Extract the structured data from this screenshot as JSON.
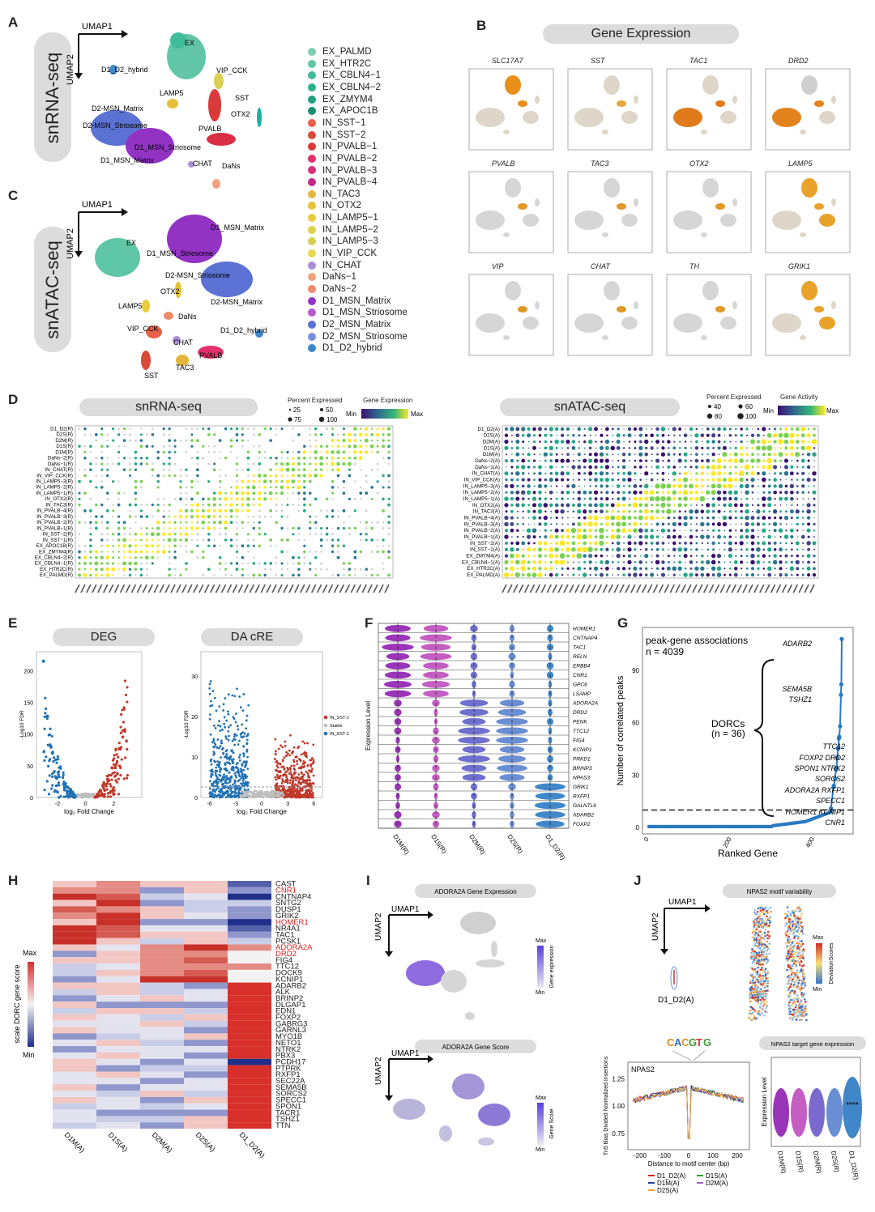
{
  "panels": {
    "A": {
      "label": "A",
      "side": "snRNA-seq",
      "umap1": "UMAP1",
      "umap2": "UMAP2",
      "clusters": [
        "EX",
        "D1_D2_hybrid",
        "VIP_CCK",
        "LAMP5",
        "SST",
        "D2-MSN_Matrix",
        "OTX2",
        "D2-MSN_Striosome",
        "PVALB",
        "D1_MSN_Striosome",
        "D1_MSN_Matrix",
        "CHAT",
        "DaNs"
      ]
    },
    "B": {
      "label": "B",
      "title": "Gene Expression",
      "genes": [
        "SLC17A7",
        "SST",
        "TAC1",
        "DRD2",
        "PVALB",
        "TAC3",
        "OTX2",
        "LAMP5",
        "VIP",
        "CHAT",
        "TH",
        "GRIK1"
      ]
    },
    "C": {
      "label": "C",
      "side": "snATAC-seq",
      "umap1": "UMAP1",
      "umap2": "UMAP2",
      "clusters": [
        "D1_MSN_Matrix",
        "EX",
        "D1_MSN_Striosome",
        "D2-MSN_Striosome",
        "OTX2",
        "LAMP5",
        "DaNs",
        "D2-MSN_Matrix",
        "VIP_CCK",
        "D1_D2_hybrid",
        "CHAT",
        "PVALB",
        "TAC3",
        "SST"
      ]
    },
    "legend": [
      {
        "name": "EX_PALMD",
        "color": "#7fcfb2"
      },
      {
        "name": "EX_HTR2C",
        "color": "#5fc6a6"
      },
      {
        "name": "EX_CBLN4−1",
        "color": "#3fbc9a"
      },
      {
        "name": "EX_CBLN4−2",
        "color": "#2ab28c"
      },
      {
        "name": "EX_ZMYM4",
        "color": "#1fa07c"
      },
      {
        "name": "EX_APOC1B",
        "color": "#19906f"
      },
      {
        "name": "IN_SST−1",
        "color": "#e8604a"
      },
      {
        "name": "IN_SST−2",
        "color": "#d84a3a"
      },
      {
        "name": "IN_PVALB−1",
        "color": "#d93a3a"
      },
      {
        "name": "IN_PVALB−2",
        "color": "#e2306a"
      },
      {
        "name": "IN_PVALB−3",
        "color": "#d82f7e"
      },
      {
        "name": "IN_PVALB−4",
        "color": "#c22a88"
      },
      {
        "name": "IN_TAC3",
        "color": "#e3b53a"
      },
      {
        "name": "IN_OTX2",
        "color": "#e6c234"
      },
      {
        "name": "IN_LAMP5−1",
        "color": "#e9cd3c"
      },
      {
        "name": "IN_LAMP5−2",
        "color": "#dfd24a"
      },
      {
        "name": "IN_LAMP5−3",
        "color": "#d6cf54"
      },
      {
        "name": "IN_VIP_CCK",
        "color": "#e7d94e"
      },
      {
        "name": "IN_CHAT",
        "color": "#a98fd6"
      },
      {
        "name": "DaNs−1",
        "color": "#f2a27c"
      },
      {
        "name": "DaNs−2",
        "color": "#f08a6a"
      },
      {
        "name": "D1_MSN_Matrix",
        "color": "#9233c3"
      },
      {
        "name": "D1_MSN_Striosome",
        "color": "#b55ad0"
      },
      {
        "name": "D2_MSN_Matrix",
        "color": "#5b72d4"
      },
      {
        "name": "D2_MSN_Striosome",
        "color": "#7a8ee0"
      },
      {
        "name": "D1_D2_hybrid",
        "color": "#3f87c9"
      }
    ],
    "D": {
      "label": "D",
      "left_title": "snRNA-seq",
      "right_title": "snATAC-seq",
      "rna_size_title": "Percent Expressed",
      "rna_color_title": "Gene Expression",
      "atac_size_title": "Percent Expressed",
      "atac_color_title": "Gene Activity",
      "rna_sizes": [
        "25",
        "50",
        "75",
        "100"
      ],
      "atac_sizes": [
        "40",
        "60",
        "80",
        "100"
      ],
      "min": "Min",
      "max": "Max",
      "rna_rows": [
        "D1_D2(R)",
        "D2S(R)",
        "D2M(R)",
        "D1S(R)",
        "D1M(R)",
        "DaNs−2(R)",
        "DaNs−1(R)",
        "IN_CHAT(R)",
        "IN_VIP_CCK(R)",
        "IN_LAMP5−3(R)",
        "IN_LAMP5−2(R)",
        "IN_LAMP5−1(R)",
        "IN_OTX2(R)",
        "IN_TAC3(R)",
        "IN_PVALB−4(R)",
        "IN_PVALB−3(R)",
        "IN_PVALB−2(R)",
        "IN_PVALB−1(R)",
        "IN_SST−2(R)",
        "IN_SST−1(R)",
        "EX_APOC1B(R)",
        "EX_ZMYM4(R)",
        "EX_CBLN4−2(R)",
        "EX_CBLN4−1(R)",
        "EX_HTR2C(R)",
        "EX_PALMD(R)"
      ],
      "atac_rows": [
        "D1_D2(A)",
        "D2S(A)",
        "D2M(A)",
        "D1S(A)",
        "D1M(A)",
        "DaNs−2(A)",
        "DaNs−1(A)",
        "IN_CHAT(A)",
        "IN_VIP_CCK(A)",
        "IN_LAMP5−3(A)",
        "IN_LAMP5−2(A)",
        "IN_LAMP5−1(A)",
        "IN_OTX2(A)",
        "IN_TAC3(A)",
        "IN_PVALB−4(A)",
        "IN_PVALB−3(A)",
        "IN_PVALB−2(A)",
        "IN_PVALB−1(A)",
        "IN_SST−2(A)",
        "IN_SST−1(A)",
        "EX_ZMYM4(A)",
        "EX_CBLN4−1(A)",
        "EX_HTR2C(A)",
        "EX_PALMD(A)"
      ]
    },
    "E": {
      "label": "E",
      "deg_title": "DEG",
      "dacre_title": "DA cRE",
      "ylabel": "-Log10 FDR",
      "xlabel": "log₂ Fold Change",
      "legend": [
        "IN_SST-1",
        "Stable",
        "IN_SST-2"
      ],
      "deg_yticks": [
        "0",
        "50",
        "100",
        "150",
        "200"
      ],
      "deg_xticks": [
        "-2",
        "0",
        "2"
      ],
      "dacre_yticks": [
        "0",
        "10",
        "20",
        "30"
      ],
      "dacre_xticks": [
        "-6",
        "-3",
        "0",
        "3",
        "6"
      ]
    },
    "F": {
      "label": "F",
      "ylabel": "Expression Level",
      "genes": [
        "HOMER1",
        "CNTNAP4",
        "TAC1",
        "RELN",
        "ERBB4",
        "CNR1",
        "GPC6",
        "LSAMP",
        "ADORA2A",
        "DRD2",
        "PENK",
        "TTC12",
        "FIG4",
        "KCNIP1",
        "PRKD1",
        "BRINP3",
        "NPAS3",
        "GRIK1",
        "RXFP1",
        "GALNTL6",
        "ADARB2",
        "FOXP2"
      ],
      "groups": [
        "D1M(R)",
        "D1S(R)",
        "D2M(R)",
        "D2S(R)",
        "D1_D2(R)"
      ]
    },
    "G": {
      "label": "G",
      "title": "peak-gene associations",
      "n": "n = 4039",
      "ylabel": "Number of correlated peaks",
      "xlabel": "Ranked Gene",
      "dorcs": "DORCs",
      "dorcs_n": "(n = 36)",
      "genes": [
        "ADARB2",
        "SEMA5B",
        "TSHZ1",
        "TTC12",
        "FOXP2  DRD2",
        "SPON1  NTRK2",
        "SORCS2",
        "ADORA2A  RXFP1",
        "SPECC1",
        "HOMER1  KCNIP1",
        "CNR1"
      ],
      "yticks": [
        "0",
        "30",
        "60",
        "90"
      ],
      "xticks": [
        "0",
        "200",
        "400"
      ]
    },
    "H": {
      "label": "H",
      "legend_title": "scale DORC gene score",
      "max": "Max",
      "min": "Min",
      "columns": [
        "D1M(A)",
        "D1S(A)",
        "D2M(A)",
        "D2S(A)",
        "D1_D2(A)"
      ],
      "genes": [
        "CAST",
        "CNR1",
        "CNTNAP4",
        "SNTG2",
        "DUSP1",
        "GRIK2",
        "HOMER1",
        "NR4A1",
        "TAC1",
        "PCSK1",
        "ADORA2A",
        "DRD2",
        "FIG4",
        "TTC12",
        "DOCK9",
        "KCNIP1",
        "ADARB2",
        "ALK",
        "BRINP2",
        "DLGAP1",
        "EDN1",
        "FOXP2",
        "GABRG3",
        "GARNL3",
        "MYO1B",
        "NETO1",
        "NTRK2",
        "PBX3",
        "PCDH17",
        "PTPRK",
        "RXFP1",
        "SEC22A",
        "SEMA5B",
        "SORCS2",
        "SPECC1",
        "SPON1",
        "TACR1",
        "TSHZ1",
        "TTN"
      ],
      "red_genes": [
        "CNR1",
        "HOMER1",
        "ADORA2A",
        "DRD2"
      ]
    },
    "I": {
      "label": "I",
      "top_title": "ADORA2A Gene Expression",
      "bottom_title": "ADORA2A Gene Score",
      "umap1": "UMAP1",
      "umap2": "UMAP2",
      "max": "Max",
      "min": "Min",
      "top_legend": "Gene expression",
      "bottom_legend": "Gene Score"
    },
    "J": {
      "label": "J",
      "title": "NPAS2 motif variability",
      "umap1": "UMAP1",
      "umap2": "UMAP2",
      "cluster": "D1_D2(A)",
      "max": "Max",
      "min": "Min",
      "legend": "DeviationScores",
      "motif_label": "NPAS2",
      "motif_logo": "CACGTG",
      "fp_ylabel": "Tn5 Bias Divided Normalized Insertions",
      "fp_xlabel": "Distance to motif center (bp)",
      "fp_yticks": [
        "0.75",
        "1.00",
        "1.25"
      ],
      "fp_xticks": [
        "-200",
        "-100",
        "0",
        "100",
        "200"
      ],
      "fp_legend": [
        "D1_D2(A)",
        "D1S(A)",
        "D1M(A)",
        "D2M(A)",
        "D2S(A)"
      ],
      "target_title": "NPAS2 target gene expression",
      "target_ylabel": "Expression Level",
      "target_groups": [
        "D1M(R)",
        "D1S(R)",
        "D2M(R)",
        "D2S(R)",
        "D1_D2(R)"
      ],
      "target_stars": "****"
    }
  },
  "colors": {
    "pill": "#dcdcdc",
    "red": "#c0392b",
    "blue": "#2171b5",
    "heat_red": "#d7302a",
    "heat_blue": "#1f2f8a",
    "grey": "#bdbdbd"
  },
  "chart_data": [
    {
      "type": "scatter",
      "panel": "G",
      "title": "peak-gene associations",
      "xlabel": "Ranked Gene",
      "ylabel": "Number of correlated peaks",
      "xlim": [
        0,
        470
      ],
      "ylim": [
        0,
        110
      ],
      "threshold": 10,
      "highlight": [
        {
          "gene": "ADARB2",
          "rank": 466,
          "value": 108
        },
        {
          "gene": "SEMA5B",
          "rank": 465,
          "value": 82
        },
        {
          "gene": "TSHZ1",
          "rank": 464,
          "value": 76
        },
        {
          "gene": "TTC12",
          "rank": 462,
          "value": 58
        },
        {
          "gene": "FOXP2",
          "rank": 460,
          "value": 52
        },
        {
          "gene": "DRD2",
          "rank": 459,
          "value": 51
        },
        {
          "gene": "SPON1",
          "rank": 458,
          "value": 46
        },
        {
          "gene": "NTRK2",
          "rank": 457,
          "value": 45
        },
        {
          "gene": "SORCS2",
          "rank": 455,
          "value": 40
        },
        {
          "gene": "ADORA2A",
          "rank": 453,
          "value": 34
        },
        {
          "gene": "RXFP1",
          "rank": 452,
          "value": 33
        },
        {
          "gene": "SPECC1",
          "rank": 450,
          "value": 28
        },
        {
          "gene": "HOMER1",
          "rank": 447,
          "value": 24
        },
        {
          "gene": "KCNIP1",
          "rank": 446,
          "value": 23
        },
        {
          "gene": "CNR1",
          "rank": 440,
          "value": 11
        }
      ]
    },
    {
      "type": "scatter",
      "panel": "E-DEG",
      "xlabel": "log2 Fold Change",
      "ylabel": "-Log10 FDR",
      "xlim": [
        -3.5,
        4
      ],
      "ylim": [
        0,
        230
      ]
    },
    {
      "type": "scatter",
      "panel": "E-DAcRE",
      "xlabel": "log2 Fold Change",
      "ylabel": "-Log10 FDR",
      "xlim": [
        -7,
        7
      ],
      "ylim": [
        0,
        36
      ]
    },
    {
      "type": "line",
      "panel": "J-footprint",
      "xlabel": "Distance to motif center (bp)",
      "ylabel": "Tn5 Bias Divided Normalized Insertions",
      "xlim": [
        -250,
        250
      ],
      "ylim": [
        0.6,
        1.4
      ],
      "series": [
        "D1_D2(A)",
        "D1S(A)",
        "D1M(A)",
        "D2M(A)",
        "D2S(A)"
      ]
    },
    {
      "type": "heatmap",
      "panel": "H",
      "rows": 39,
      "columns": [
        "D1M(A)",
        "D1S(A)",
        "D2M(A)",
        "D2S(A)",
        "D1_D2(A)"
      ]
    }
  ]
}
